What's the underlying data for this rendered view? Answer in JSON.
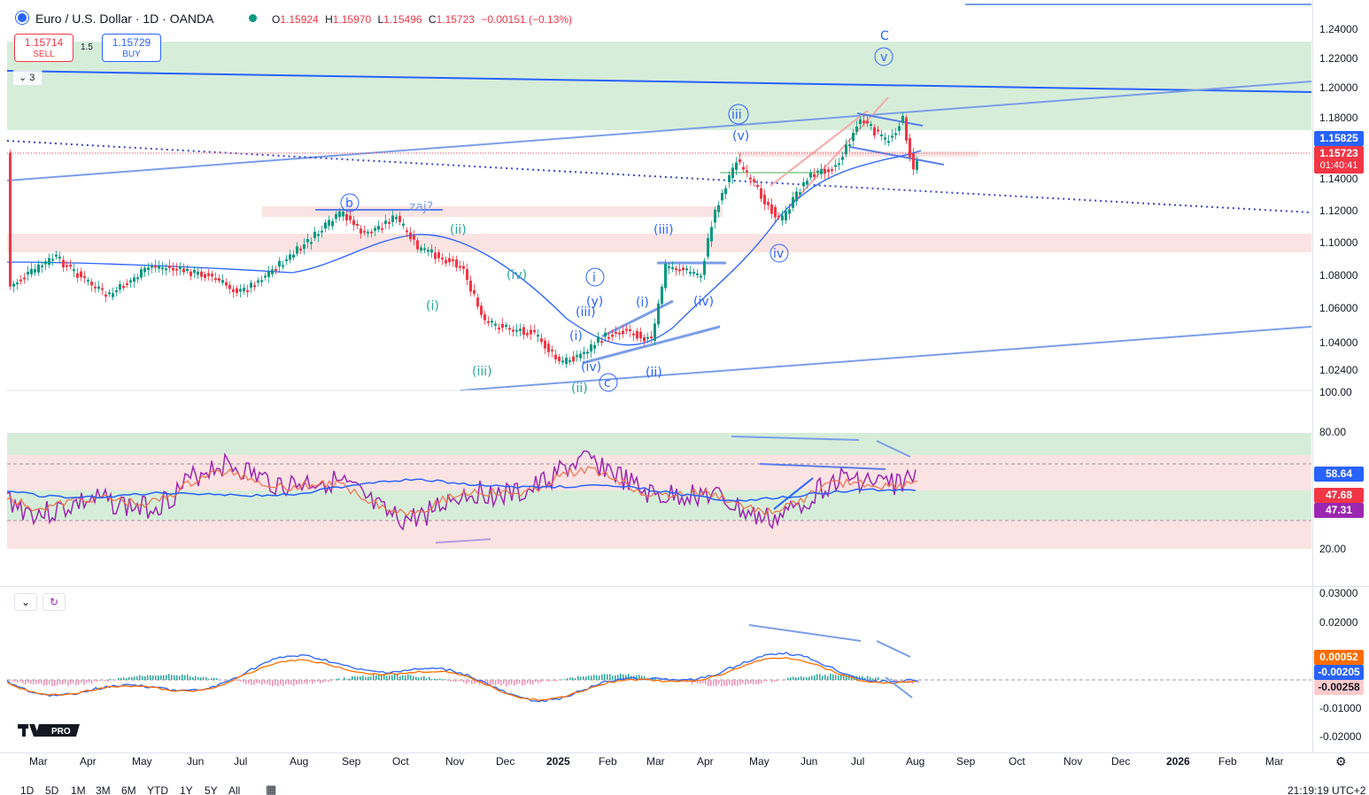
{
  "header": {
    "title": "Euro / U.S. Dollar · 1D · OANDA",
    "ohlc": {
      "o_label": "O",
      "o": "1.15924",
      "h_label": "H",
      "h": "1.15970",
      "l_label": "L",
      "l": "1.15496",
      "c_label": "C",
      "c": "1.15723",
      "change": "−0.00151 (−0.13%)"
    }
  },
  "trade": {
    "sell_price": "1.15714",
    "sell_label": "SELL",
    "spread": "1.5",
    "buy_price": "1.15729",
    "buy_label": "BUY"
  },
  "indicators_toggle": {
    "count": "3"
  },
  "price_axis": {
    "ticks": [
      "1.24000",
      "1.22000",
      "1.20000",
      "1.18000",
      "1.14000",
      "1.12000",
      "1.10000",
      "1.08000",
      "1.06000",
      "1.04000",
      "1.02400",
      "100.00"
    ],
    "tag_blue": "1.15825",
    "tag_red_price": "1.15723",
    "tag_red_timer": "01:40:41"
  },
  "rsi_axis": {
    "ticks": [
      "80.00",
      "20.00"
    ],
    "tag_blue": "58.64",
    "tag_red": "47.68",
    "tag_purple": "47.31"
  },
  "macd_axis": {
    "ticks": [
      "0.03000",
      "0.02000",
      "-0.01000",
      "-0.02000"
    ],
    "tag_orange": "0.00052",
    "tag_blue": "-0.00205",
    "tag_pink": "-0.00258"
  },
  "time_axis": [
    "Mar",
    "Apr",
    "May",
    "Jun",
    "Jul",
    "Aug",
    "Sep",
    "Oct",
    "Nov",
    "Dec",
    "2025",
    "Feb",
    "Mar",
    "Apr",
    "May",
    "Jun",
    "Jul",
    "Aug",
    "Sep",
    "Oct",
    "Nov",
    "Dec",
    "2026",
    "Feb",
    "Mar"
  ],
  "wave_labels": {
    "C": "C",
    "v_top": "v",
    "iii_top": "iii",
    "v_paren": "(v)",
    "b": "b",
    "zaj": "zaj?",
    "ii_green": "(ii)",
    "i_green": "(i)",
    "iv_green": "(iv)",
    "iii_green": "(iii)",
    "ii_green2": "(ii)",
    "i_circ": "i",
    "y": "(y)",
    "iii_blue": "(iii)",
    "i_small": "(i)",
    "iv_blue": "(iv)",
    "c_circ": "c",
    "i_blue": "(i)",
    "iii_blue2": "(iii)",
    "iv_blue2": "(iv)",
    "ii_blue": "(ii)",
    "iv_circ": "iv"
  },
  "bottom_bar": {
    "ranges": [
      "1D",
      "5D",
      "1M",
      "3M",
      "6M",
      "YTD",
      "1Y",
      "5Y",
      "All"
    ],
    "clock": "21:19:19 UTC+2"
  },
  "logo": {
    "text": "PRO"
  },
  "colors": {
    "up": "#089981",
    "down": "#f23645",
    "accent": "#2962ff",
    "zone_green": "#d6eed9",
    "zone_red": "#fbe3e3"
  }
}
